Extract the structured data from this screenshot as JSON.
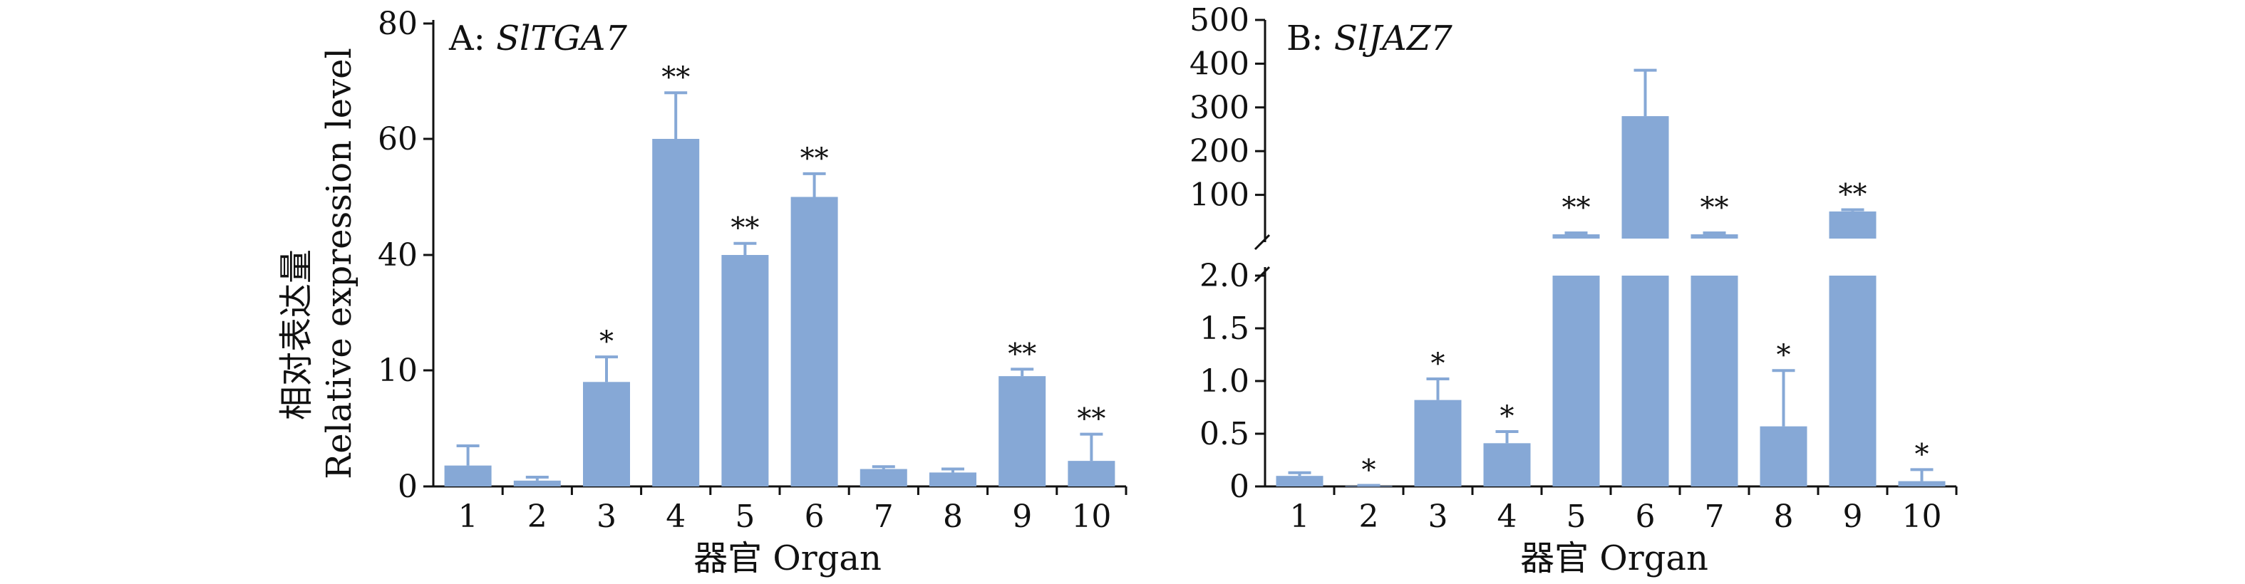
{
  "chart_data": [
    {
      "type": "bar",
      "panel_label": "A: ",
      "gene": "SlTGA7",
      "categories": [
        "1",
        "2",
        "3",
        "4",
        "5",
        "6",
        "7",
        "8",
        "9",
        "10"
      ],
      "values": [
        1.8,
        0.5,
        9,
        60,
        40,
        50,
        1.5,
        1.2,
        9.5,
        2.2
      ],
      "error_upper": [
        3.5,
        0.8,
        13.5,
        68,
        42,
        54,
        1.7,
        1.5,
        10.3,
        4.5
      ],
      "significance": [
        "",
        "",
        "*",
        "**",
        "**",
        "**",
        "",
        "",
        "**",
        "**"
      ],
      "y_ticks": [
        "0",
        "10",
        "40",
        "60",
        "80"
      ],
      "xlabel": "器官 Organ",
      "ylabel_cn": "相对表达量",
      "ylabel_en": "Relative expression level"
    },
    {
      "type": "bar",
      "panel_label": "B: ",
      "gene": "SlJAZ7",
      "categories": [
        "1",
        "2",
        "3",
        "4",
        "5",
        "6",
        "7",
        "8",
        "9",
        "10"
      ],
      "values": [
        0.1,
        0.005,
        0.82,
        0.41,
        2,
        280,
        2,
        0.57,
        62,
        0.05
      ],
      "error_upper": [
        0.13,
        0.01,
        1.02,
        0.52,
        2,
        385,
        2,
        1.1,
        66,
        0.16
      ],
      "significance": [
        "",
        "*",
        "*",
        "*",
        "**",
        "",
        "**",
        "*",
        "**",
        "*"
      ],
      "y_ticks_lower": [
        "0",
        "0.5",
        "1.0",
        "1.5",
        "2.0"
      ],
      "y_ticks_upper": [
        "100",
        "200",
        "300",
        "400",
        "500"
      ],
      "xlabel": "器官 Organ"
    }
  ]
}
